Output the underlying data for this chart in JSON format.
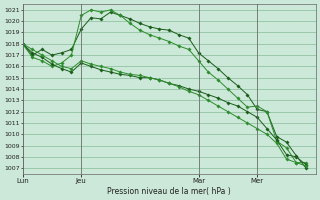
{
  "xlabel": "Pression niveau de la mer( hPa )",
  "background_color": "#cce8d8",
  "grid_color": "#88bb99",
  "line_colors": [
    "#1a5c1a",
    "#2d8c2d",
    "#1a5c1a",
    "#2d8c2d"
  ],
  "ylim": [
    1006.5,
    1021.5
  ],
  "yticks": [
    1007,
    1008,
    1009,
    1010,
    1011,
    1012,
    1013,
    1014,
    1015,
    1016,
    1017,
    1018,
    1019,
    1020,
    1021
  ],
  "day_labels": [
    "Lun",
    "Jeu",
    "Mar",
    "Mer"
  ],
  "day_positions": [
    0,
    6,
    18,
    24
  ],
  "xlim": [
    0,
    30
  ],
  "series": [
    {
      "x": [
        0,
        1,
        2,
        3,
        4,
        5,
        6,
        7,
        8,
        9,
        10,
        11,
        12,
        13,
        14,
        15,
        16,
        17,
        18,
        19,
        20,
        21,
        22,
        23,
        24,
        25,
        26,
        27,
        28,
        29
      ],
      "y": [
        1018.0,
        1017.0,
        1017.5,
        1017.0,
        1017.2,
        1017.5,
        1019.3,
        1020.3,
        1020.2,
        1020.8,
        1020.5,
        1020.2,
        1019.8,
        1019.5,
        1019.3,
        1019.2,
        1018.8,
        1018.5,
        1017.2,
        1016.5,
        1015.8,
        1015.0,
        1014.3,
        1013.5,
        1012.2,
        1012.0,
        1009.8,
        1009.3,
        1008.1,
        1007.0
      ]
    },
    {
      "x": [
        0,
        1,
        2,
        3,
        4,
        5,
        6,
        7,
        8,
        9,
        10,
        11,
        12,
        13,
        14,
        15,
        16,
        17,
        18,
        19,
        20,
        21,
        22,
        23,
        24,
        25,
        26,
        27,
        28,
        29
      ],
      "y": [
        1018.0,
        1016.8,
        1016.5,
        1016.0,
        1016.3,
        1017.0,
        1020.5,
        1021.0,
        1020.8,
        1021.0,
        1020.5,
        1019.8,
        1019.2,
        1018.8,
        1018.5,
        1018.2,
        1017.8,
        1017.5,
        1016.5,
        1015.5,
        1014.8,
        1014.0,
        1013.2,
        1012.4,
        1012.5,
        1012.0,
        1009.4,
        1008.8,
        1007.5,
        1007.5
      ]
    },
    {
      "x": [
        0,
        1,
        2,
        3,
        4,
        5,
        6,
        7,
        8,
        9,
        10,
        11,
        12,
        13,
        14,
        15,
        16,
        17,
        18,
        19,
        20,
        21,
        22,
        23,
        24,
        25,
        26,
        27,
        28,
        29
      ],
      "y": [
        1018.0,
        1017.2,
        1016.8,
        1016.2,
        1015.8,
        1015.5,
        1016.3,
        1016.0,
        1015.7,
        1015.5,
        1015.3,
        1015.2,
        1015.0,
        1015.0,
        1014.8,
        1014.5,
        1014.3,
        1014.0,
        1013.8,
        1013.5,
        1013.2,
        1012.8,
        1012.5,
        1012.0,
        1011.5,
        1010.5,
        1009.5,
        1008.2,
        1008.0,
        1007.3
      ]
    },
    {
      "x": [
        0,
        1,
        2,
        3,
        4,
        5,
        6,
        7,
        8,
        9,
        10,
        11,
        12,
        13,
        14,
        15,
        16,
        17,
        18,
        19,
        20,
        21,
        22,
        23,
        24,
        25,
        26,
        27,
        28,
        29
      ],
      "y": [
        1018.0,
        1017.5,
        1017.0,
        1016.5,
        1016.0,
        1015.8,
        1016.5,
        1016.2,
        1016.0,
        1015.8,
        1015.5,
        1015.3,
        1015.2,
        1015.0,
        1014.8,
        1014.5,
        1014.2,
        1013.8,
        1013.5,
        1013.0,
        1012.5,
        1012.0,
        1011.5,
        1011.0,
        1010.5,
        1010.0,
        1009.2,
        1007.8,
        1007.5,
        1007.2
      ]
    }
  ]
}
